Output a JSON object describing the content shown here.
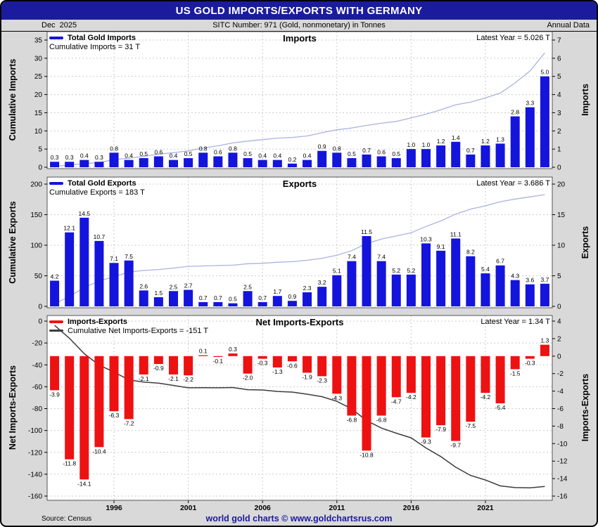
{
  "header": {
    "title": "US GOLD IMPORTS/EXPORTS WITH GERMANY",
    "date": "Dec  2025",
    "sitc": "SITC Number: 971 (Gold, nonmonetary) in Tonnes",
    "frequency": "Annual Data"
  },
  "footer": {
    "source": "Source: Census",
    "brand": "world gold charts © www.goldchartsrus.com"
  },
  "colors": {
    "header_bg": "#1b1b9e",
    "header_text": "#ffffff",
    "bar_blue": "#1414dd",
    "bar_red": "#ee1111",
    "cumulative_light": "#a9b3e0",
    "cumulative_dark": "#3c3c3c",
    "grid": "#cccccc",
    "panel_bg": "#ffffff",
    "outer_bg": "#d9d9d9",
    "brand_text": "#1b1b9e"
  },
  "x_axis": {
    "tick_years": [
      1996,
      2001,
      2006,
      2011,
      2016,
      2021
    ]
  },
  "chart_data": [
    {
      "type": "bar",
      "title": "Imports",
      "latest_label": "Latest Year = 5.026 T",
      "legend_bars": "Total Gold Imports",
      "legend_cumulative": "Cumulative Imports = 31 T",
      "ylabel_left": "Cumulative Imports",
      "ylabel_right": "Imports",
      "start_year": 1992,
      "values": [
        0.3,
        0.3,
        0.4,
        0.3,
        0.8,
        0.4,
        0.5,
        0.6,
        0.4,
        0.5,
        0.8,
        0.6,
        0.8,
        0.5,
        0.4,
        0.4,
        0.2,
        0.4,
        0.9,
        0.8,
        0.5,
        0.7,
        0.6,
        0.5,
        1.0,
        1.0,
        1.2,
        1.4,
        0.7,
        1.2,
        1.3,
        2.8,
        3.3,
        5.0
      ],
      "left_ticks": [
        0,
        5,
        10,
        15,
        20,
        25,
        30,
        35
      ],
      "right_ticks": [
        0,
        1,
        2,
        3,
        4,
        5,
        6,
        7
      ],
      "left_range": [
        0,
        35
      ],
      "right_range": [
        0,
        7
      ]
    },
    {
      "type": "bar",
      "title": "Exports",
      "latest_label": "Latest Year = 3.686 T",
      "legend_bars": "Total Gold Exports",
      "legend_cumulative": "Cumulative Exports = 183 T",
      "ylabel_left": "Cumulative Exports",
      "ylabel_right": "Exports",
      "start_year": 1992,
      "values": [
        4.2,
        12.1,
        14.5,
        10.7,
        7.1,
        7.5,
        2.6,
        1.5,
        2.5,
        2.7,
        0.7,
        0.7,
        0.5,
        2.5,
        0.7,
        1.7,
        0.9,
        2.3,
        3.2,
        5.1,
        7.4,
        11.5,
        7.4,
        5.2,
        5.2,
        10.3,
        9.1,
        11.1,
        8.2,
        5.4,
        6.7,
        4.3,
        3.6,
        3.7
      ],
      "left_ticks": [
        0,
        50,
        100,
        150,
        200
      ],
      "right_ticks": [
        0,
        5,
        10,
        15,
        20
      ],
      "left_range": [
        0,
        200
      ],
      "right_range": [
        0,
        20
      ]
    },
    {
      "type": "bar",
      "title": "Net Imports-Exports",
      "latest_label": "Latest Year = 1.34 T",
      "legend_bars": "Imports-Exports",
      "legend_cumulative": "Cumulative Net Imports-Exports = -151 T",
      "ylabel_left": "Net Imports-Exports",
      "ylabel_right": "Imports-Exports",
      "start_year": 1992,
      "values": [
        -3.9,
        -11.8,
        -14.1,
        -10.4,
        -6.3,
        -7.2,
        -2.1,
        -0.9,
        -2.1,
        -2.2,
        0.1,
        -0.1,
        0.3,
        -2.0,
        -0.3,
        -1.3,
        -0.6,
        -1.9,
        -2.3,
        -4.3,
        -6.8,
        -10.8,
        -6.8,
        -4.7,
        -4.2,
        -9.3,
        -7.9,
        -9.7,
        -7.5,
        -4.2,
        -5.4,
        -1.5,
        -0.3,
        1.3
      ],
      "left_ticks": [
        0,
        -20,
        -40,
        -60,
        -80,
        -100,
        -120,
        -140,
        -160
      ],
      "right_ticks": [
        4,
        2,
        0,
        -2,
        -4,
        -6,
        -8,
        -10,
        -12,
        -14,
        -16
      ],
      "left_range": [
        -160,
        0
      ],
      "right_range": [
        -16,
        4
      ]
    }
  ]
}
